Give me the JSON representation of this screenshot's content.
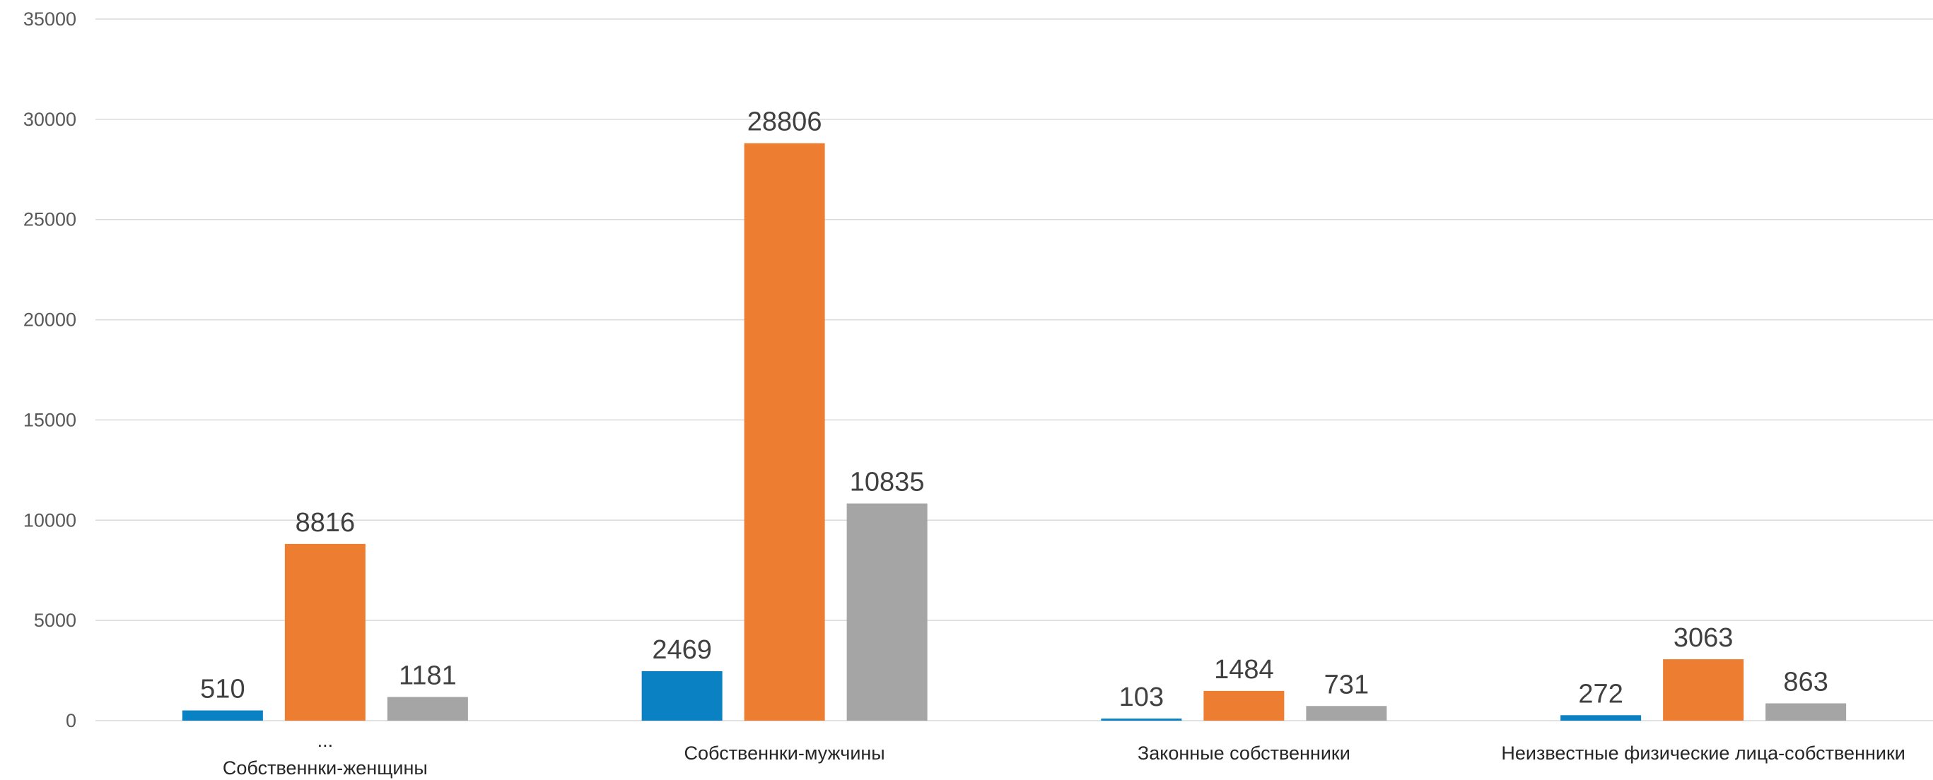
{
  "chart_data": {
    "type": "bar",
    "categories": [
      "Собственнки-женщины",
      "Собственнки-мужчины",
      "Законные собственники",
      "Неизвестные физические лица-собственники"
    ],
    "category_note": "...",
    "series": [
      {
        "values": [
          510,
          2469,
          103,
          272
        ],
        "color": "#0a81c2"
      },
      {
        "values": [
          8816,
          28806,
          1484,
          3063
        ],
        "color": "#ed7d31"
      },
      {
        "values": [
          1181,
          10835,
          731,
          863
        ],
        "color": "#a5a5a5"
      }
    ],
    "ylim": [
      0,
      35000
    ],
    "yticks": [
      "0",
      "5000",
      "10000",
      "15000",
      "20000",
      "25000",
      "30000",
      "35000"
    ],
    "grid": true,
    "data_labels": true
  }
}
